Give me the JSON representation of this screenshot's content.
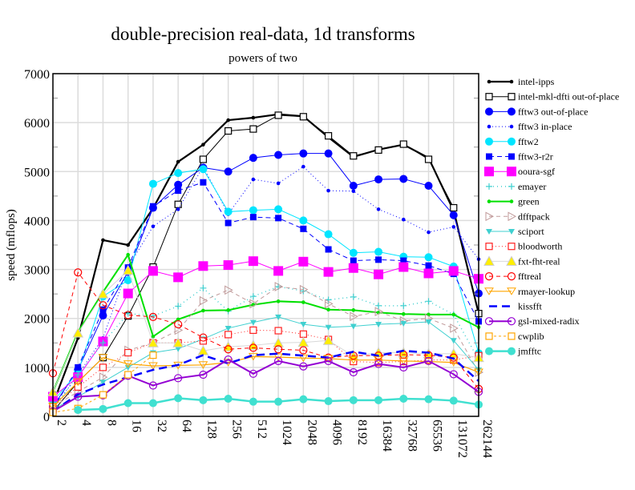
{
  "chart_data": {
    "type": "line",
    "title": "double-precision real-data, 1d transforms",
    "subtitle": "powers of two",
    "xlabel": "",
    "ylabel": "speed (mflops)",
    "ylim": [
      0,
      7000
    ],
    "yticks": [
      "0",
      "1000",
      "2000",
      "3000",
      "4000",
      "5000",
      "6000",
      "7000"
    ],
    "x": [
      "2",
      "4",
      "8",
      "16",
      "32",
      "64",
      "128",
      "256",
      "512",
      "1024",
      "2048",
      "4096",
      "8192",
      "16384",
      "32768",
      "65536",
      "131072",
      "262144"
    ],
    "grid": true,
    "legend_position": "right",
    "series": [
      {
        "name": "intel-ipps",
        "color": "#000000",
        "dash": "",
        "width": 2.2,
        "marker": "dot",
        "values": [
          250,
          1600,
          3600,
          3500,
          4250,
          5200,
          5550,
          6050,
          6100,
          6170,
          6130,
          5700,
          5300,
          5450,
          5550,
          5280,
          4200,
          2100
        ]
      },
      {
        "name": "intel-mkl-dfti out-of-place",
        "color": "#000000",
        "dash": "",
        "width": 1,
        "marker": "square-open",
        "values": [
          100,
          700,
          1200,
          2050,
          3050,
          4330,
          5250,
          5830,
          5870,
          6150,
          6120,
          5730,
          5320,
          5440,
          5560,
          5250,
          4260,
          2100
        ]
      },
      {
        "name": "fftw3 out-of-place",
        "color": "#0000ff",
        "dash": "",
        "width": 1,
        "marker": "circle",
        "values": [
          200,
          950,
          2060,
          2950,
          4260,
          4730,
          5080,
          5000,
          5280,
          5340,
          5370,
          5370,
          4710,
          4840,
          4850,
          4710,
          4110,
          2510
        ]
      },
      {
        "name": "fftw3 in-place",
        "color": "#0000ff",
        "dash": "1,3",
        "width": 1,
        "marker": "dot",
        "values": [
          150,
          850,
          1600,
          3050,
          3880,
          4230,
          5100,
          4130,
          4840,
          4760,
          5100,
          4610,
          4600,
          4230,
          4020,
          3760,
          3870,
          3210
        ]
      },
      {
        "name": "fftw2",
        "color": "#00e5ff",
        "dash": "",
        "width": 1,
        "marker": "circle",
        "values": [
          300,
          900,
          2450,
          2780,
          4750,
          4970,
          5050,
          4180,
          4210,
          4230,
          4000,
          3720,
          3340,
          3360,
          3260,
          3250,
          3060,
          1290
        ]
      },
      {
        "name": "fftw3-r2r",
        "color": "#0000ff",
        "dash": "6,4",
        "width": 1,
        "marker": "square",
        "values": [
          150,
          1000,
          2180,
          3040,
          4290,
          4610,
          4780,
          3950,
          4070,
          4050,
          3830,
          3410,
          3180,
          3200,
          3180,
          3080,
          2910,
          1940
        ]
      },
      {
        "name": "ooura-sgf",
        "color": "#ff00ff",
        "dash": "",
        "width": 1,
        "marker": "bigsquare",
        "values": [
          400,
          800,
          1530,
          2510,
          2970,
          2840,
          3070,
          3090,
          3170,
          2970,
          3160,
          2950,
          3030,
          2900,
          3050,
          2920,
          2970,
          2810
        ]
      },
      {
        "name": "emayer",
        "color": "#40d0d0",
        "dash": "1,4",
        "width": 1.5,
        "marker": "plus",
        "values": [
          150,
          850,
          1500,
          2100,
          2050,
          2250,
          2620,
          2150,
          2450,
          2650,
          2560,
          2380,
          2440,
          2260,
          2260,
          2350,
          2080,
          1150
        ]
      },
      {
        "name": "green",
        "color": "#00e000",
        "dash": "",
        "width": 2,
        "marker": "dot",
        "values": [
          500,
          1720,
          2540,
          3300,
          1630,
          1980,
          2160,
          2170,
          2280,
          2350,
          2330,
          2180,
          2170,
          2120,
          2090,
          2080,
          2080,
          1820
        ]
      },
      {
        "name": "dfftpack",
        "color": "#c09a9a",
        "dash": "5,4",
        "width": 1,
        "marker": "triangle-right",
        "values": [
          200,
          500,
          800,
          1350,
          1500,
          1760,
          2360,
          2580,
          2300,
          2650,
          2590,
          2300,
          2040,
          2140,
          1950,
          2000,
          1800,
          900
        ]
      },
      {
        "name": "sciport",
        "color": "#40d0d0",
        "dash": "",
        "width": 1,
        "marker": "triangle-down",
        "values": [
          150,
          400,
          700,
          1000,
          1300,
          1380,
          1580,
          1800,
          1920,
          2030,
          1880,
          1820,
          1840,
          1880,
          1900,
          1930,
          1550,
          950
        ]
      },
      {
        "name": "bloodworth",
        "color": "#ff2020",
        "dash": "1,3",
        "width": 1,
        "marker": "square-open",
        "values": [
          200,
          600,
          1000,
          1300,
          1500,
          1500,
          1540,
          1670,
          1760,
          1750,
          1680,
          1570,
          1120,
          1100,
          1120,
          1150,
          1150,
          1240
        ]
      },
      {
        "name": "fxt-fht-real",
        "color": "#d8d8d8",
        "dash": "",
        "width": 1,
        "marker": "triangle-up",
        "values": [
          500,
          1700,
          2500,
          2980,
          1500,
          1500,
          1340,
          1420,
          1450,
          1500,
          1510,
          1550,
          1230,
          1300,
          1300,
          1280,
          1280,
          1200
        ]
      },
      {
        "name": "fftreal",
        "color": "#ff0000",
        "dash": "5,4",
        "width": 1,
        "marker": "circle-open",
        "values": [
          880,
          2940,
          2270,
          2070,
          2030,
          1880,
          1610,
          1370,
          1400,
          1370,
          1350,
          1200,
          1240,
          1240,
          1260,
          1250,
          1200,
          560
        ]
      },
      {
        "name": "rmayer-lookup",
        "color": "#ffa500",
        "dash": "",
        "width": 1.2,
        "marker": "triangle-down-open",
        "values": [
          200,
          700,
          1200,
          1070,
          1030,
          1040,
          1050,
          1100,
          1220,
          1210,
          1190,
          1180,
          1150,
          1150,
          1130,
          1120,
          1100,
          900
        ]
      },
      {
        "name": "kissfft",
        "color": "#0000ff",
        "dash": "10,6",
        "width": 2.5,
        "marker": "none",
        "values": [
          100,
          450,
          650,
          800,
          950,
          1050,
          1250,
          1080,
          1250,
          1280,
          1240,
          1200,
          1320,
          1240,
          1340,
          1300,
          1180,
          720
        ]
      },
      {
        "name": "gsl-mixed-radix",
        "color": "#9400d3",
        "dash": "",
        "width": 2,
        "marker": "circle-open",
        "values": [
          100,
          400,
          430,
          830,
          630,
          780,
          850,
          1160,
          870,
          1130,
          1020,
          1130,
          900,
          1070,
          1000,
          1130,
          860,
          500
        ]
      },
      {
        "name": "cwplib",
        "color": "#ffa500",
        "dash": "3,3",
        "width": 1,
        "marker": "square-open",
        "values": [
          80,
          160,
          440,
          850,
          1250,
          null,
          null,
          null,
          null,
          null,
          null,
          null,
          null,
          null,
          null,
          null,
          null,
          null
        ]
      },
      {
        "name": "jmfftc",
        "color": "#40e0d0",
        "dash": "",
        "width": 2.5,
        "marker": "circle",
        "values": [
          null,
          130,
          150,
          270,
          270,
          370,
          330,
          360,
          300,
          300,
          350,
          310,
          330,
          330,
          360,
          350,
          320,
          240
        ]
      }
    ]
  }
}
